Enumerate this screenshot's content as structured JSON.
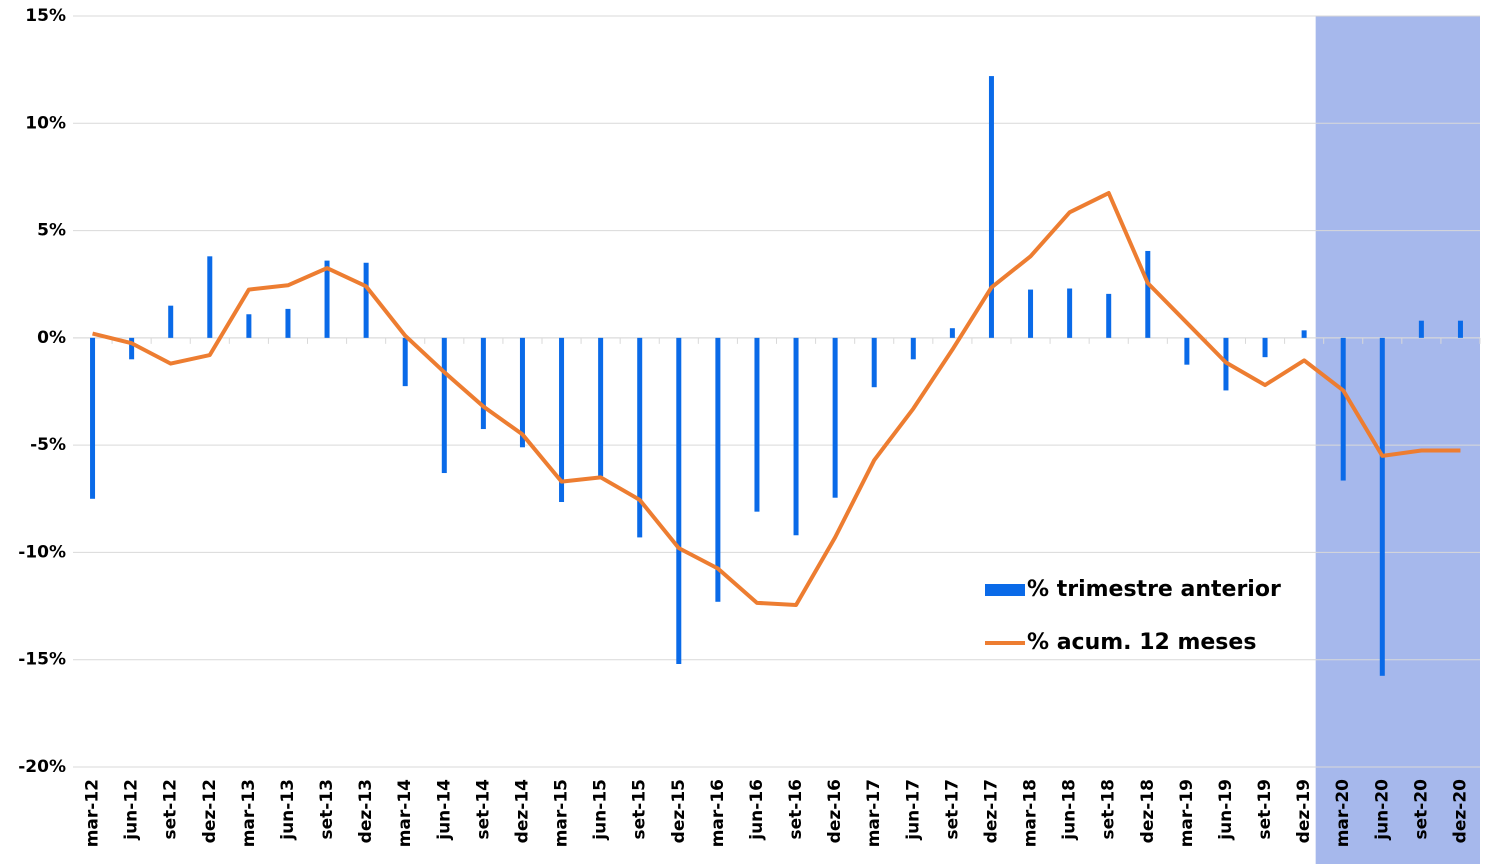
{
  "chart_data": {
    "type": "bar_line",
    "categories": [
      "mar-12",
      "jun-12",
      "set-12",
      "dez-12",
      "mar-13",
      "jun-13",
      "set-13",
      "dez-13",
      "mar-14",
      "jun-14",
      "set-14",
      "dez-14",
      "mar-15",
      "jun-15",
      "set-15",
      "dez-15",
      "mar-16",
      "jun-16",
      "set-16",
      "dez-16",
      "mar-17",
      "jun-17",
      "set-17",
      "dez-17",
      "mar-18",
      "jun-18",
      "set-18",
      "dez-18",
      "mar-19",
      "jun-19",
      "set-19",
      "dez-19",
      "mar-20",
      "jun-20",
      "set-20",
      "dez-20"
    ],
    "series": [
      {
        "name": "% trimestre anterior",
        "kind": "bar",
        "color": "#0a6ae8",
        "values": [
          -7.5,
          -1.0,
          1.5,
          3.8,
          1.1,
          1.35,
          3.6,
          3.5,
          -2.25,
          -6.3,
          -4.25,
          -5.1,
          -7.65,
          -6.45,
          -9.3,
          -15.2,
          -12.3,
          -8.1,
          -9.2,
          -7.45,
          -2.3,
          -1.0,
          0.45,
          12.2,
          2.25,
          2.3,
          2.05,
          4.05,
          -1.25,
          -2.45,
          -0.9,
          0.35,
          -6.65,
          -15.75,
          0.8,
          0.8
        ]
      },
      {
        "name": "% acum. 12 meses",
        "kind": "line",
        "color": "#ed7d31",
        "values": [
          0.2,
          -0.25,
          -1.2,
          -0.8,
          2.25,
          2.45,
          3.25,
          2.4,
          0.1,
          -1.6,
          -3.2,
          -4.5,
          -6.7,
          -6.5,
          -7.55,
          -9.8,
          -10.75,
          -12.35,
          -12.45,
          -9.3,
          -5.7,
          -3.3,
          -0.55,
          2.35,
          3.8,
          5.85,
          6.75,
          2.55,
          0.7,
          -1.15,
          -2.2,
          -1.05,
          -2.45,
          -5.5,
          -5.25,
          -5.25
        ]
      }
    ],
    "ylim": [
      -20,
      15
    ],
    "yticks": [
      {
        "value": -20,
        "label": "-20%"
      },
      {
        "value": -15,
        "label": "-15%"
      },
      {
        "value": -10,
        "label": "-10%"
      },
      {
        "value": -5,
        "label": "-5%"
      },
      {
        "value": 0,
        "label": "0%"
      },
      {
        "value": 5,
        "label": "5%"
      },
      {
        "value": 10,
        "label": "10%"
      },
      {
        "value": 15,
        "label": "15%"
      }
    ],
    "grid": true,
    "highlight": {
      "from": "mar-20",
      "to": "dez-20",
      "color": "#a6b8ec"
    }
  }
}
